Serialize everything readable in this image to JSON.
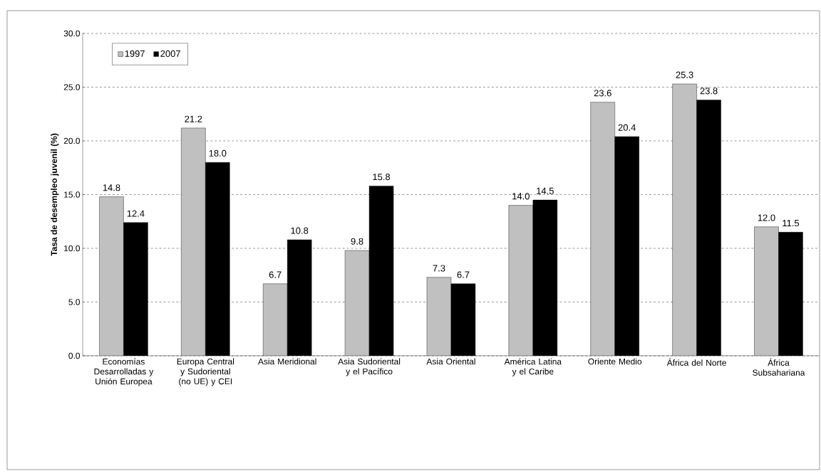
{
  "chart_data": {
    "type": "bar",
    "ylabel": "Tasa de desempleo juvenil (%)",
    "categories": [
      "Economías Desarrolladas y Unión Europea",
      "Europa Central y Sudoriental (no UE) y CEI",
      "Asia Meridional",
      "Asia Sudoriental y el Pacífico",
      "Asia Oriental",
      "América Latina y el Caribe",
      "Oriente Medio",
      "África del Norte",
      "África Subsahariana"
    ],
    "series": [
      {
        "name": "1997",
        "color": "#c0c0c0",
        "values": [
          14.8,
          21.2,
          6.7,
          9.8,
          7.3,
          14.0,
          23.6,
          25.3,
          12.0
        ],
        "value_labels": [
          "14.8",
          "21.2",
          "6.7",
          "9.8",
          "7.3",
          "14.0",
          "23.6",
          "25.3",
          "12.0"
        ]
      },
      {
        "name": "2007",
        "color": "#000000",
        "values": [
          12.4,
          18.0,
          10.8,
          15.8,
          6.7,
          14.5,
          20.4,
          23.8,
          11.5
        ],
        "value_labels": [
          "12.4",
          "18.0",
          "10.8",
          "15.8",
          "6.7",
          "14.5",
          "20.4",
          "23.8",
          "11.5"
        ]
      }
    ],
    "ylim": [
      0,
      30
    ],
    "yticks": [
      {
        "value": 0,
        "label": "0.0"
      },
      {
        "value": 5,
        "label": "5.0"
      },
      {
        "value": 10,
        "label": "10.0"
      },
      {
        "value": 15,
        "label": "15.0"
      },
      {
        "value": 20,
        "label": "20.0"
      },
      {
        "value": 25,
        "label": "25.0"
      },
      {
        "value": 30,
        "label": "30.0"
      }
    ],
    "grid": "y",
    "legend": "top left"
  }
}
